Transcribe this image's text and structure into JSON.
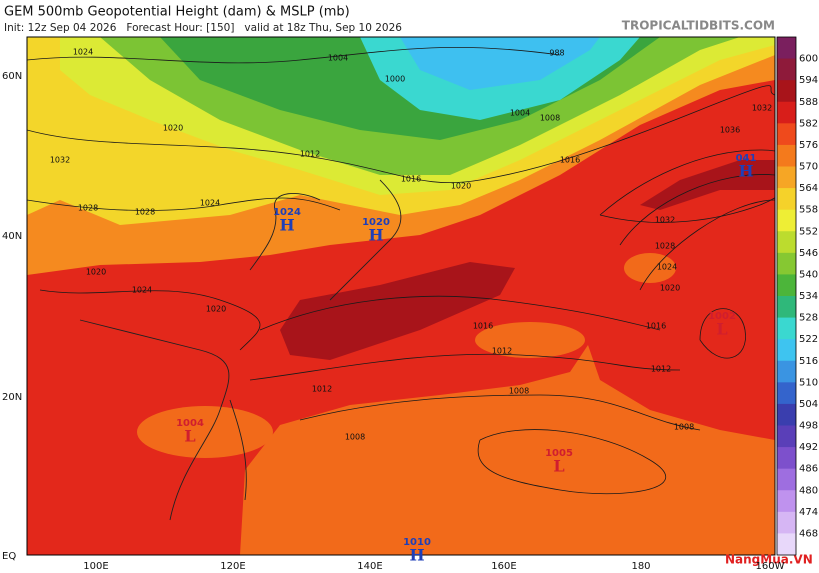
{
  "header": {
    "title": "GEM 500mb Geopotential Height (dam) & MSLP (mb)",
    "subtitle": "Init: 12z Sep 04 2026   Forecast Hour: [150]   valid at 18z Thu, Sep 10 2026",
    "source": "TROPICALTIDBITS.COM"
  },
  "lat_labels": [
    "60N",
    "40N",
    "20N",
    "EQ"
  ],
  "lon_labels": [
    "100E",
    "120E",
    "140E",
    "160E",
    "180",
    "160W"
  ],
  "colorbar": {
    "labels": [
      600,
      594,
      588,
      582,
      576,
      570,
      564,
      558,
      552,
      546,
      540,
      534,
      528,
      522,
      516,
      510,
      504,
      498,
      492,
      486,
      480,
      474,
      468
    ],
    "colors": [
      "#7a1f5e",
      "#8e1a3a",
      "#a8141a",
      "#d81e1a",
      "#ef4a1c",
      "#f47a1c",
      "#f6a625",
      "#f5d22a",
      "#eeee35",
      "#bcdc2e",
      "#86c832",
      "#4cb53a",
      "#2fb87a",
      "#3ad8d0",
      "#3ec4f0",
      "#3a94e2",
      "#3464cc",
      "#3a3eae",
      "#5a3fb8",
      "#7d50cc",
      "#9e6ee0",
      "#bf92ee",
      "#d6b6f4",
      "#e8d8fa"
    ]
  },
  "centers": [
    {
      "letter": "H",
      "pressure": "1024"
    },
    {
      "letter": "H",
      "pressure": "1020"
    },
    {
      "letter": "H",
      "pressure": "041"
    },
    {
      "letter": "L",
      "pressure": "1002"
    },
    {
      "letter": "L",
      "pressure": "1004"
    },
    {
      "letter": "L",
      "pressure": "1005"
    },
    {
      "letter": "H",
      "pressure": "1010"
    }
  ],
  "contour_labels": [
    "1024",
    "1004",
    "1000",
    "988",
    "1020",
    "1032",
    "1012",
    "1016",
    "1020",
    "1016",
    "1024",
    "1028",
    "1028",
    "1032",
    "1028",
    "1024",
    "1020",
    "1020",
    "1024",
    "1020",
    "1016",
    "1016",
    "1012",
    "1012",
    "1008",
    "1008",
    "1012",
    "1008",
    "1036",
    "1032",
    "1004",
    "1008"
  ],
  "watermark": "NangMua.VN"
}
